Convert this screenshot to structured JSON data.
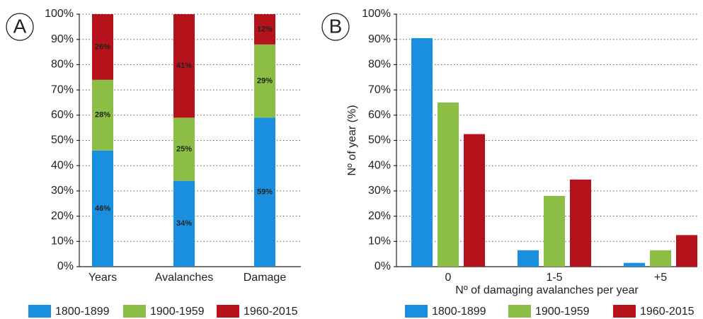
{
  "chart_data": [
    {
      "type": "stacked_bar",
      "panel": "A",
      "categories": [
        "Years",
        "Avalanches",
        "Damage"
      ],
      "series": [
        {
          "name": "1800-1899",
          "color": "#1a8fe0",
          "values": [
            46,
            34,
            59
          ],
          "value_labels": [
            "46%",
            "34%",
            "59%"
          ]
        },
        {
          "name": "1900-1959",
          "color": "#8cbd44",
          "values": [
            28,
            25,
            29
          ],
          "value_labels": [
            "28%",
            "25%",
            "29%"
          ]
        },
        {
          "name": "1960-2015",
          "color": "#b5121b",
          "values": [
            26,
            41,
            12
          ],
          "value_labels": [
            "26%",
            "41%",
            "12%"
          ]
        }
      ],
      "ylim": [
        0,
        100
      ],
      "yticks": [
        {
          "value": 0,
          "label": "0%"
        },
        {
          "value": 10,
          "label": "10%"
        },
        {
          "value": 20,
          "label": "20%"
        },
        {
          "value": 30,
          "label": "30%"
        },
        {
          "value": 40,
          "label": "40%"
        },
        {
          "value": 50,
          "label": "50%"
        },
        {
          "value": 60,
          "label": "60%"
        },
        {
          "value": 70,
          "label": "70%"
        },
        {
          "value": 80,
          "label": "80%"
        },
        {
          "value": 90,
          "label": "90%"
        },
        {
          "value": 100,
          "label": "100%"
        }
      ],
      "grid": true
    },
    {
      "type": "bar",
      "panel": "B",
      "ylabel": "Nº of year (%)",
      "xlabel": "Nº of damaging avalanches per year",
      "categories": [
        "0",
        "1-5",
        "+5"
      ],
      "series": [
        {
          "name": "1800-1899",
          "color": "#1a8fe0",
          "values": [
            90.5,
            6.5,
            1.5
          ]
        },
        {
          "name": "1900-1959",
          "color": "#8cbd44",
          "values": [
            65,
            28,
            6.5
          ]
        },
        {
          "name": "1960-2015",
          "color": "#b5121b",
          "values": [
            52.5,
            34.5,
            12.5
          ]
        }
      ],
      "ylim": [
        0,
        100
      ],
      "yticks": [
        {
          "value": 0,
          "label": "0%"
        },
        {
          "value": 10,
          "label": "10%"
        },
        {
          "value": 20,
          "label": "20%"
        },
        {
          "value": 30,
          "label": "30%"
        },
        {
          "value": 40,
          "label": "40%"
        },
        {
          "value": 50,
          "label": "50%"
        },
        {
          "value": 60,
          "label": "60%"
        },
        {
          "value": 70,
          "label": "70%"
        },
        {
          "value": 80,
          "label": "80%"
        },
        {
          "value": 90,
          "label": "90%"
        },
        {
          "value": 100,
          "label": "100%"
        }
      ],
      "grid": true
    }
  ]
}
